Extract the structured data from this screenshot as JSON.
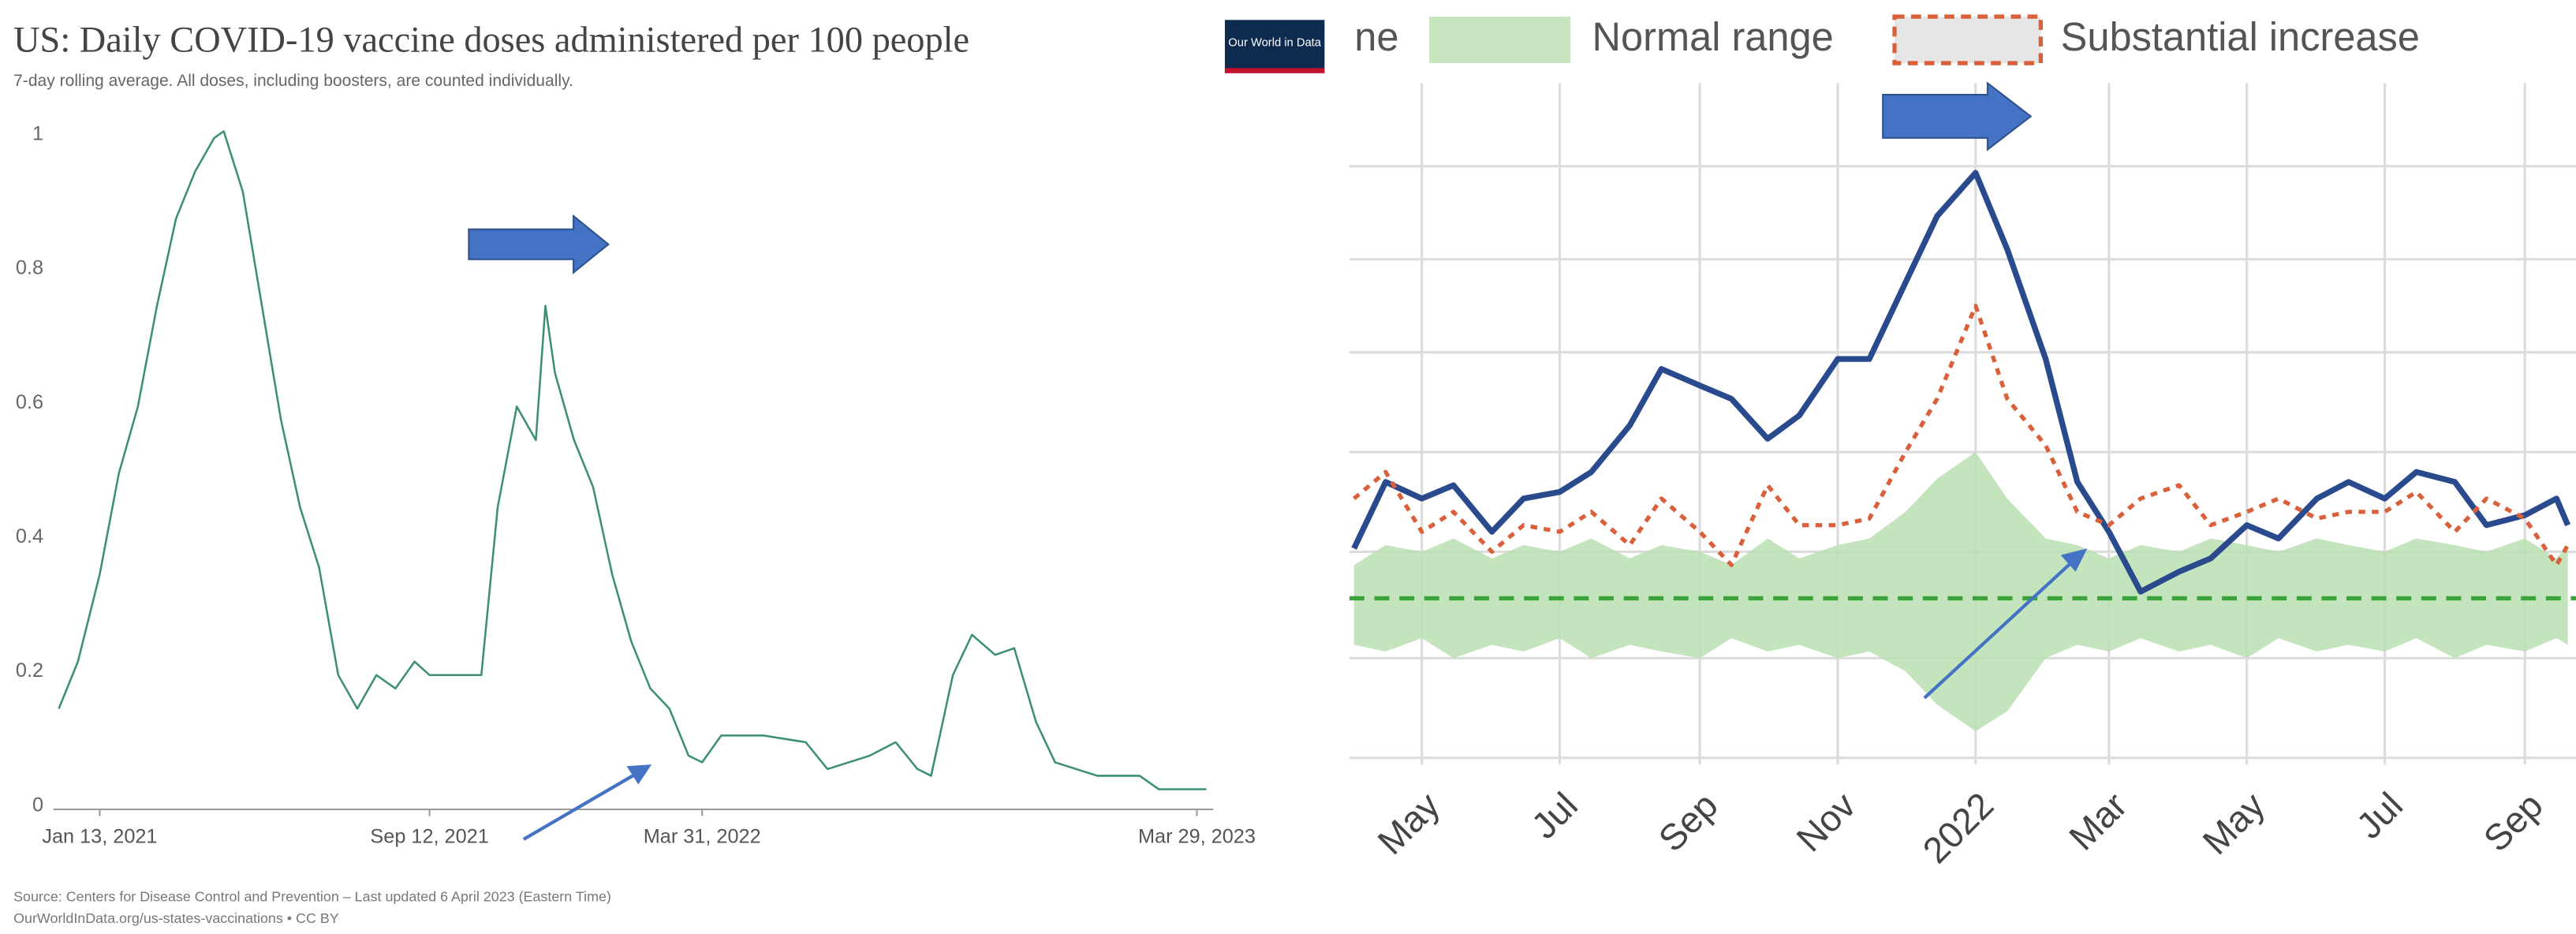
{
  "chart_data": [
    {
      "type": "line",
      "title": "US: Daily COVID-19 vaccine doses administered per 100 people",
      "subtitle": "7-day rolling average. All doses, including boosters, are counted individually.",
      "logo": "Our World in Data",
      "source": [
        "Source: Centers for Disease Control and Prevention – Last updated 6 April 2023 (Eastern Time)",
        "OurWorldInData.org/us-states-vaccinations • CC BY"
      ],
      "xlim": [
        "2020-12-10",
        "2023-04-10"
      ],
      "xticks": [
        {
          "value": "2021-01-13",
          "label": "Jan 13, 2021"
        },
        {
          "value": "2021-09-12",
          "label": "Sep 12, 2021"
        },
        {
          "value": "2022-03-31",
          "label": "Mar 31, 2022"
        },
        {
          "value": "2023-03-29",
          "label": "Mar 29, 2023"
        }
      ],
      "ylim": [
        0,
        1
      ],
      "yticks": [
        0,
        0.2,
        0.4,
        0.6,
        0.8,
        1
      ],
      "ytick_labels": true,
      "grid": false,
      "x": [
        "2020-12-14",
        "2020-12-28",
        "2021-01-13",
        "2021-01-27",
        "2021-02-10",
        "2021-02-24",
        "2021-03-10",
        "2021-03-24",
        "2021-04-07",
        "2021-04-14",
        "2021-04-28",
        "2021-05-12",
        "2021-05-26",
        "2021-06-09",
        "2021-06-23",
        "2021-07-07",
        "2021-07-21",
        "2021-08-04",
        "2021-08-18",
        "2021-09-01",
        "2021-09-12",
        "2021-10-01",
        "2021-10-20",
        "2021-11-01",
        "2021-11-15",
        "2021-11-29",
        "2021-12-06",
        "2021-12-13",
        "2021-12-27",
        "2022-01-10",
        "2022-01-24",
        "2022-02-07",
        "2022-02-21",
        "2022-03-07",
        "2022-03-21",
        "2022-03-31",
        "2022-04-14",
        "2022-05-15",
        "2022-06-15",
        "2022-07-01",
        "2022-08-01",
        "2022-08-20",
        "2022-09-05",
        "2022-09-15",
        "2022-10-01",
        "2022-10-15",
        "2022-11-01",
        "2022-11-15",
        "2022-12-01",
        "2022-12-15",
        "2023-01-15",
        "2023-02-15",
        "2023-03-01",
        "2023-04-05"
      ],
      "series": [
        {
          "color": "#3c8f74",
          "values": [
            0.15,
            0.22,
            0.35,
            0.5,
            0.6,
            0.75,
            0.88,
            0.95,
            1.0,
            1.01,
            0.92,
            0.75,
            0.58,
            0.45,
            0.36,
            0.2,
            0.15,
            0.2,
            0.18,
            0.22,
            0.2,
            0.2,
            0.2,
            0.45,
            0.6,
            0.55,
            0.75,
            0.65,
            0.55,
            0.48,
            0.35,
            0.25,
            0.18,
            0.15,
            0.08,
            0.07,
            0.11,
            0.11,
            0.1,
            0.06,
            0.08,
            0.1,
            0.06,
            0.05,
            0.2,
            0.26,
            0.23,
            0.24,
            0.13,
            0.07,
            0.05,
            0.05,
            0.03,
            0.03
          ]
        }
      ]
    },
    {
      "type": "line",
      "xlim": [
        "2021-03-30",
        "2022-09-25"
      ],
      "xticks": [
        {
          "value": "2021-05-01",
          "label": "May"
        },
        {
          "value": "2021-07-01",
          "label": "Jul"
        },
        {
          "value": "2021-09-01",
          "label": "Sep"
        },
        {
          "value": "2021-11-01",
          "label": "Nov"
        },
        {
          "value": "2022-01-01",
          "label": "2022"
        },
        {
          "value": "2022-03-01",
          "label": "Mar"
        },
        {
          "value": "2022-05-01",
          "label": "May"
        },
        {
          "value": "2022-07-01",
          "label": "Jul"
        },
        {
          "value": "2022-09-01",
          "label": "Sep"
        }
      ],
      "ylim": [
        0,
        100
      ],
      "yticks": [
        1,
        16,
        32,
        47,
        62,
        76,
        90
      ],
      "ytick_labels": false,
      "grid": true,
      "x": [
        "2021-04-01",
        "2021-04-15",
        "2021-05-01",
        "2021-05-15",
        "2021-06-01",
        "2021-06-15",
        "2021-07-01",
        "2021-07-15",
        "2021-08-01",
        "2021-08-15",
        "2021-09-01",
        "2021-09-15",
        "2021-10-01",
        "2021-10-15",
        "2021-11-01",
        "2021-11-15",
        "2021-12-01",
        "2021-12-15",
        "2022-01-01",
        "2022-01-15",
        "2022-02-01",
        "2022-02-15",
        "2022-03-01",
        "2022-03-15",
        "2022-04-01",
        "2022-04-15",
        "2022-05-01",
        "2022-05-15",
        "2022-06-01",
        "2022-06-15",
        "2022-07-01",
        "2022-07-15",
        "2022-08-01",
        "2022-08-15",
        "2022-09-01",
        "2022-09-15",
        "2022-09-20"
      ],
      "band": {
        "name": "Normal range",
        "color": "#b9dfb0",
        "upper": [
          30,
          33,
          32,
          34,
          31,
          33,
          32,
          34,
          31,
          33,
          32,
          30,
          34,
          31,
          33,
          34,
          38,
          43,
          47,
          40,
          34,
          33,
          31,
          33,
          32,
          34,
          33,
          32,
          34,
          33,
          32,
          34,
          33,
          32,
          34,
          31,
          33
        ],
        "lower": [
          18,
          17,
          19,
          16,
          18,
          17,
          19,
          16,
          18,
          17,
          16,
          19,
          17,
          18,
          16,
          17,
          14,
          9,
          5,
          8,
          16,
          18,
          17,
          19,
          17,
          18,
          16,
          19,
          17,
          18,
          17,
          19,
          16,
          18,
          17,
          19,
          18
        ]
      },
      "baseline": {
        "name": "ne",
        "value": 25,
        "color": "#3aa33a"
      },
      "series": [
        {
          "color": "#2a4a8e",
          "values": [
            32.5,
            42.5,
            40,
            42,
            35,
            40,
            41,
            44,
            51,
            59.5,
            57,
            55,
            49,
            52.5,
            61,
            61,
            72.5,
            82.5,
            89,
            77.5,
            61,
            42.5,
            35,
            26,
            29,
            31,
            36,
            34,
            40,
            42.5,
            40,
            44,
            42.5,
            36,
            37.5,
            40,
            36
          ]
        },
        {
          "name": "Substantial increase",
          "color": "#d9603b",
          "values": [
            40,
            44,
            35,
            38,
            32,
            36,
            35,
            38,
            33,
            40,
            35,
            30,
            42,
            36,
            36,
            37,
            47,
            55,
            69,
            55,
            48,
            38,
            36,
            40,
            42,
            36,
            38,
            40,
            37,
            38,
            38,
            41,
            35,
            40,
            37,
            30,
            33
          ]
        }
      ]
    }
  ]
}
